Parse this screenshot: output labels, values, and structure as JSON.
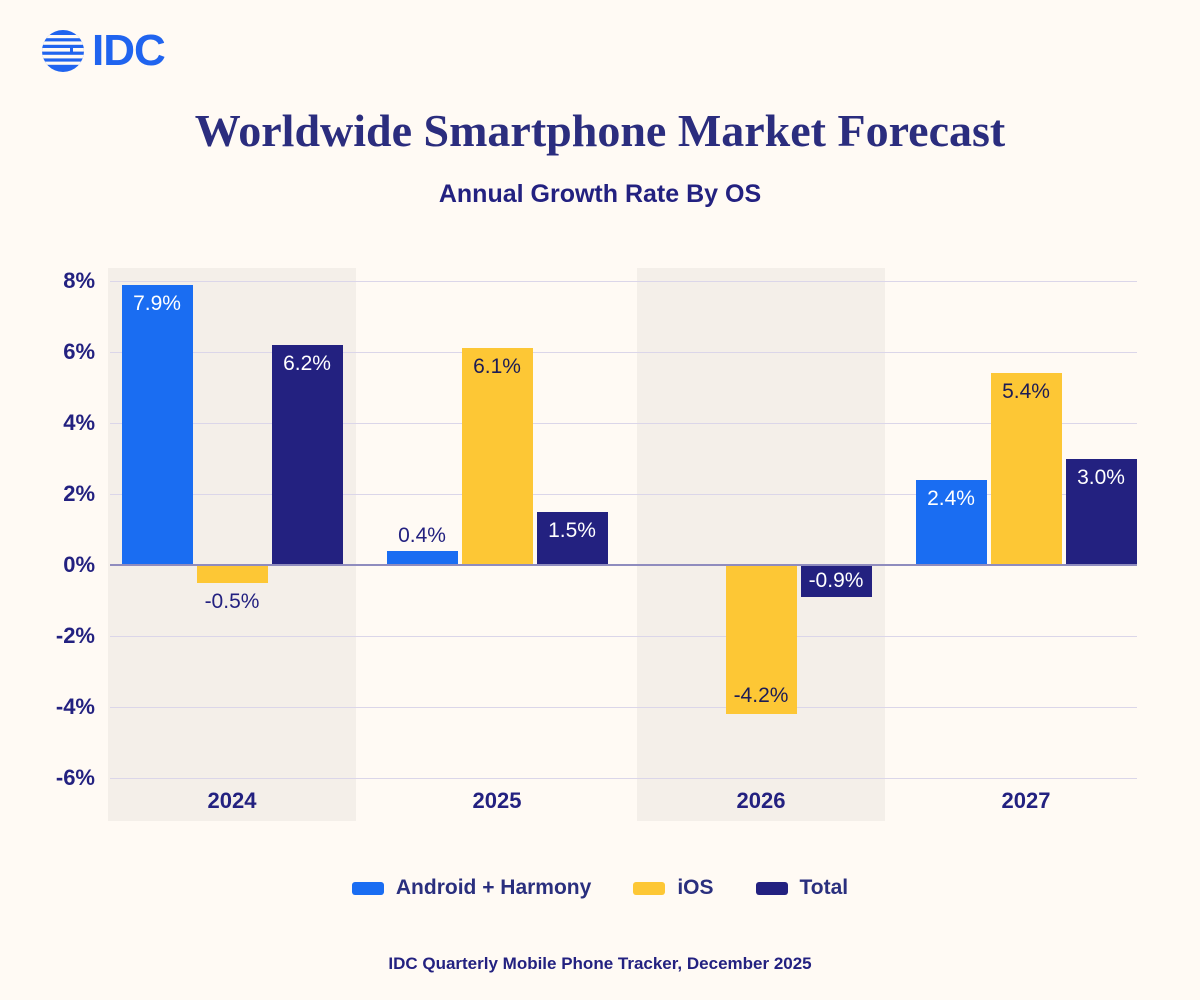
{
  "page": {
    "logo_text": "IDC",
    "title": "Worldwide Smartphone Market Forecast",
    "subtitle": "Annual Growth Rate By OS",
    "footer": "IDC Quarterly Mobile Phone Tracker, December 2025"
  },
  "colors": {
    "background": "#FFFAF4",
    "band": "#F4EFE9",
    "gridline": "#DBD6E9",
    "zero_line": "#8F8CBE",
    "navy_text": "#232180",
    "logo_blue": "#2064EF",
    "label_outside": "#232180",
    "label_on_dark_bar": "#FFFFFF",
    "label_on_yellow_bar": "#1C1C55"
  },
  "chart_data": {
    "type": "bar",
    "title": "Worldwide Smartphone Market Forecast",
    "subtitle": "Annual Growth Rate By OS",
    "categories": [
      "2024",
      "2025",
      "2026",
      "2027"
    ],
    "series": [
      {
        "name": "Android + Harmony",
        "color": "#1A6DF2",
        "values": [
          7.9,
          0.4,
          null,
          2.4
        ],
        "labels": [
          "7.9%",
          "0.4%",
          null,
          "2.4%"
        ],
        "label_inside_color": "#FFFFFF"
      },
      {
        "name": "iOS",
        "color": "#FDC735",
        "values": [
          -0.5,
          6.1,
          -4.2,
          5.4
        ],
        "labels": [
          "-0.5%",
          "6.1%",
          "-4.2%",
          "5.4%"
        ],
        "label_inside_color": "#1C1C55"
      },
      {
        "name": "Total",
        "color": "#232180",
        "values": [
          6.2,
          1.5,
          -0.9,
          3.0
        ],
        "labels": [
          "6.2%",
          "1.5%",
          "-0.9%",
          "3.0%"
        ],
        "label_inside_color": "#FFFFFF"
      }
    ],
    "ylim": [
      -6,
      8
    ],
    "yticks": [
      8,
      6,
      4,
      2,
      0,
      -2,
      -4,
      -6
    ],
    "ytick_labels": [
      "8%",
      "6%",
      "4%",
      "2%",
      "0%",
      "-2%",
      "-4%",
      "-6%"
    ],
    "grid": true,
    "legend_position": "bottom",
    "shaded_categories": [
      "2024",
      "2026"
    ],
    "source": "IDC Quarterly Mobile Phone Tracker, December 2025"
  }
}
